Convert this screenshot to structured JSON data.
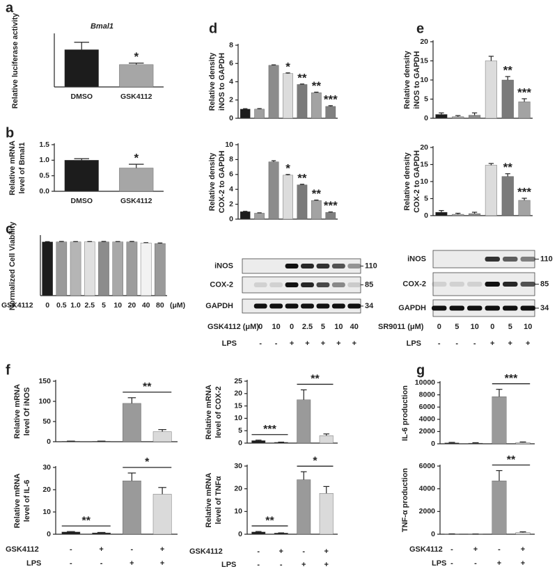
{
  "panel_labels": [
    "a",
    "b",
    "c",
    "d",
    "e",
    "f",
    "g"
  ],
  "chart_data": [
    {
      "type": "bar",
      "title": "Bmal1",
      "ylabel": [
        "Relative luciferase activity"
      ],
      "categories": [
        "DMSO",
        "GSK4112"
      ],
      "values": [
        1.0,
        0.6
      ],
      "errors": [
        0.2,
        0.04
      ],
      "colors": [
        "#1c1c1c",
        "#a6a6a6"
      ],
      "ylim": [
        0,
        1.4
      ],
      "stars": [
        {
          "index": 1,
          "text": "*"
        }
      ]
    },
    {
      "type": "bar",
      "ylabel": [
        "Relative mRNA",
        "level of Bmal1"
      ],
      "categories": [
        "DMSO",
        "GSK4112"
      ],
      "values": [
        1.0,
        0.75
      ],
      "errors": [
        0.05,
        0.12
      ],
      "colors": [
        "#1c1c1c",
        "#a6a6a6"
      ],
      "ylim": [
        0,
        1.5
      ],
      "yticks": [
        {
          "value": 0,
          "label": "0.0"
        },
        {
          "value": 0.5,
          "label": "0.5"
        },
        {
          "value": 1,
          "label": "1.0"
        },
        {
          "value": 1.5,
          "label": "1.5"
        }
      ],
      "stars": [
        {
          "index": 1,
          "text": "*"
        }
      ]
    },
    {
      "type": "bar",
      "ylabel": [
        "Normalized Cell Viability"
      ],
      "xlabel": "GSK4112",
      "xunit": "(μM)",
      "categories": [
        "0",
        "0.5",
        "1.0",
        "2.5",
        "5",
        "10",
        "20",
        "40",
        "80"
      ],
      "values": [
        1.0,
        1.0,
        1.0,
        1.0,
        1.0,
        1.0,
        1.0,
        0.98,
        0.97
      ],
      "errors": [
        0.005,
        0.008,
        0.006,
        0.006,
        0.008,
        0.006,
        0.008,
        0.006,
        0.01
      ],
      "colors": [
        "#1c1c1c",
        "#999999",
        "#b5b5b5",
        "#e0e0e0",
        "#8c8c8c",
        "#a8a8a8",
        "#9c9c9c",
        "#f2f2f2",
        "#9a9a9a"
      ],
      "ylim": [
        0,
        1.1
      ]
    },
    {
      "type": "bar",
      "ylabel": [
        "Relative density",
        "iNOS to GAPDH"
      ],
      "values": [
        1.0,
        1.0,
        5.8,
        4.9,
        3.7,
        2.8,
        1.3
      ],
      "errors": [
        0.05,
        0.06,
        0.05,
        0.07,
        0.05,
        0.06,
        0.08
      ],
      "colors": [
        "#1c1c1c",
        "#a0a0a0",
        "#8c8c8c",
        "#dcdcdc",
        "#7a7a7a",
        "#a3a3a3",
        "#808080"
      ],
      "ylim": [
        0,
        8
      ],
      "yticks": [
        0,
        2,
        4,
        6,
        8
      ],
      "stars": [
        {
          "index": 3,
          "text": "*"
        },
        {
          "index": 4,
          "text": "**"
        },
        {
          "index": 5,
          "text": "**"
        },
        {
          "index": 6,
          "text": "***"
        }
      ]
    },
    {
      "type": "bar",
      "ylabel": [
        "Relative density",
        "COX-2 to GAPDH"
      ],
      "values": [
        1.0,
        0.8,
        7.7,
        5.9,
        4.6,
        2.5,
        0.9
      ],
      "errors": [
        0.05,
        0.05,
        0.15,
        0.1,
        0.08,
        0.06,
        0.06
      ],
      "colors": [
        "#1c1c1c",
        "#a0a0a0",
        "#8c8c8c",
        "#dcdcdc",
        "#7a7a7a",
        "#a3a3a3",
        "#808080"
      ],
      "ylim": [
        0,
        10
      ],
      "yticks": [
        0,
        2,
        4,
        6,
        8,
        10
      ],
      "stars": [
        {
          "index": 3,
          "text": "*"
        },
        {
          "index": 4,
          "text": "**"
        },
        {
          "index": 5,
          "text": "**"
        },
        {
          "index": 6,
          "text": "***"
        }
      ]
    },
    {
      "type": "bar",
      "ylabel": [
        "Relative density",
        "iNOS to GAPDH"
      ],
      "values": [
        1.0,
        0.4,
        0.8,
        15.0,
        10.0,
        4.3
      ],
      "errors": [
        0.4,
        0.3,
        0.6,
        1.2,
        0.9,
        0.8
      ],
      "colors": [
        "#1c1c1c",
        "#a0a0a0",
        "#8c8c8c",
        "#dcdcdc",
        "#7a7a7a",
        "#a3a3a3"
      ],
      "ylim": [
        0,
        20
      ],
      "yticks": [
        0,
        5,
        10,
        15,
        20
      ],
      "stars": [
        {
          "index": 4,
          "text": "**"
        },
        {
          "index": 5,
          "text": "***"
        }
      ]
    },
    {
      "type": "bar",
      "ylabel": [
        "Relative density",
        "COX-2 to GAPDH"
      ],
      "values": [
        1.0,
        0.4,
        0.6,
        14.8,
        11.5,
        4.5
      ],
      "errors": [
        0.5,
        0.3,
        0.4,
        0.5,
        0.8,
        0.6
      ],
      "colors": [
        "#1c1c1c",
        "#a0a0a0",
        "#8c8c8c",
        "#dcdcdc",
        "#7a7a7a",
        "#a3a3a3"
      ],
      "ylim": [
        0,
        20
      ],
      "yticks": [
        0,
        5,
        10,
        15,
        20
      ],
      "stars": [
        {
          "index": 4,
          "text": "**"
        },
        {
          "index": 5,
          "text": "***"
        }
      ]
    },
    {
      "type": "bar",
      "ylabel": [
        "Relative mRNA",
        "level Of iNOS"
      ],
      "values": [
        1,
        1,
        95,
        25
      ],
      "errors": [
        0.5,
        0.5,
        14,
        5
      ],
      "colors": [
        "#1c1c1c",
        "#1c1c1c",
        "#9a9a9a",
        "#dadada"
      ],
      "ylim": [
        0,
        150
      ],
      "yticks": [
        0,
        50,
        100,
        150
      ],
      "brackets": [
        {
          "from": 2,
          "to": 3,
          "text": "**"
        }
      ]
    },
    {
      "type": "bar",
      "ylabel": [
        "Relative mRNA",
        "level of IL-6"
      ],
      "values": [
        1,
        0.6,
        24,
        18
      ],
      "errors": [
        0.2,
        0.2,
        3.5,
        3
      ],
      "colors": [
        "#1c1c1c",
        "#1c1c1c",
        "#9a9a9a",
        "#dadada"
      ],
      "ylim": [
        0,
        30
      ],
      "yticks": [
        0,
        10,
        20,
        30
      ],
      "brackets": [
        {
          "from": 0,
          "to": 1,
          "text": "**"
        },
        {
          "from": 2,
          "to": 3,
          "text": "*"
        }
      ]
    },
    {
      "type": "bar",
      "ylabel": [
        "Relative mRNA",
        "level of COX-2"
      ],
      "values": [
        1,
        0.3,
        17.5,
        3
      ],
      "errors": [
        0.2,
        0.1,
        4,
        0.7
      ],
      "colors": [
        "#1c1c1c",
        "#1c1c1c",
        "#9a9a9a",
        "#dadada"
      ],
      "ylim": [
        0,
        25
      ],
      "yticks": [
        0,
        5,
        10,
        15,
        20,
        25
      ],
      "brackets": [
        {
          "from": 0,
          "to": 1,
          "text": "***"
        },
        {
          "from": 2,
          "to": 3,
          "text": "**"
        }
      ]
    },
    {
      "type": "bar",
      "ylabel": [
        "Relative mRNA",
        "level of TNFα"
      ],
      "values": [
        1,
        0.5,
        24,
        18
      ],
      "errors": [
        0.2,
        0.1,
        3.5,
        3
      ],
      "colors": [
        "#1c1c1c",
        "#1c1c1c",
        "#9a9a9a",
        "#dadada"
      ],
      "ylim": [
        0,
        30
      ],
      "yticks": [
        0,
        10,
        20,
        30
      ],
      "brackets": [
        {
          "from": 0,
          "to": 1,
          "text": "**"
        },
        {
          "from": 2,
          "to": 3,
          "text": "*"
        }
      ]
    },
    {
      "type": "bar",
      "ylabel": [
        "IL-6 production"
      ],
      "values": [
        150,
        100,
        7700,
        200
      ],
      "errors": [
        80,
        80,
        1200,
        100
      ],
      "colors": [
        "#1c1c1c",
        "#1c1c1c",
        "#9a9a9a",
        "#dadada"
      ],
      "ylim": [
        0,
        10000
      ],
      "yticks": [
        0,
        2000,
        4000,
        6000,
        8000,
        10000
      ],
      "brackets": [
        {
          "from": 2,
          "to": 3,
          "text": "***"
        }
      ]
    },
    {
      "type": "bar",
      "ylabel": [
        "TNF-α production"
      ],
      "values": [
        20,
        10,
        4700,
        150
      ],
      "errors": [
        10,
        10,
        900,
        60
      ],
      "colors": [
        "#1c1c1c",
        "#1c1c1c",
        "#9a9a9a",
        "#dadada"
      ],
      "ylim": [
        0,
        6000
      ],
      "yticks": [
        0,
        2000,
        4000,
        6000
      ],
      "brackets": [
        {
          "from": 2,
          "to": 3,
          "text": "**"
        }
      ]
    }
  ],
  "blots": [
    {
      "rows": [
        {
          "label": "iNOS",
          "marker": 110
        },
        {
          "label": "COX-2",
          "marker": 85
        },
        {
          "label": "GAPDH",
          "marker": 34
        }
      ],
      "treatment": "GSK4112 (μM)",
      "doses": [
        0,
        10,
        0,
        2.5,
        5,
        10,
        40
      ],
      "lps_label": "LPS",
      "lps": [
        "-",
        "-",
        "+",
        "+",
        "+",
        "+",
        "+"
      ]
    },
    {
      "rows": [
        {
          "label": "iNOS",
          "marker": 110
        },
        {
          "label": "COX-2",
          "marker": 85
        },
        {
          "label": "GAPDH",
          "marker": 34
        }
      ],
      "treatment": "SR9011 (μM)",
      "doses": [
        0,
        5,
        10,
        0,
        5,
        10
      ],
      "lps_label": "LPS",
      "lps": [
        "-",
        "-",
        "-",
        "+",
        "+",
        "+"
      ]
    }
  ],
  "conditions": [
    [
      {
        "label": "GSK4112",
        "signs": [
          "-",
          "+",
          "-",
          "+"
        ]
      },
      {
        "label": "LPS",
        "signs": [
          "-",
          "-",
          "+",
          "+"
        ]
      }
    ],
    [
      {
        "label": "GSK4112",
        "signs": [
          "-",
          "+",
          "-",
          "+"
        ]
      },
      {
        "label": "LPS",
        "signs": [
          "-",
          "-",
          "+",
          "+"
        ]
      }
    ],
    [
      {
        "label": "GSK4112",
        "signs": [
          "-",
          "+",
          "-",
          "+"
        ]
      },
      {
        "label": "LPS",
        "signs": [
          "-",
          "-",
          "+",
          "+"
        ]
      }
    ]
  ]
}
